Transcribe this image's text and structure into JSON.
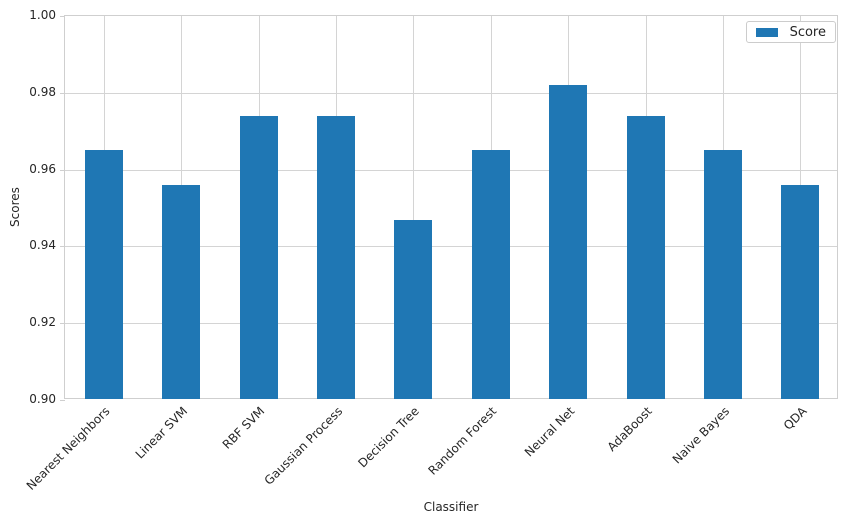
{
  "chart_data": {
    "type": "bar",
    "title": "",
    "categories": [
      "Nearest Neighbors",
      "Linear SVM",
      "RBF SVM",
      "Gaussian Process",
      "Decision Tree",
      "Random Forest",
      "Neural Net",
      "AdaBoost",
      "Naive Bayes",
      "QDA"
    ],
    "series": [
      {
        "name": "Score",
        "values": [
          0.965,
          0.956,
          0.974,
          0.974,
          0.947,
          0.965,
          0.982,
          0.974,
          0.965,
          0.956
        ]
      }
    ],
    "xlabel": "Classifier",
    "ylabel": "Scores",
    "ylim": [
      0.9,
      1.0
    ],
    "yticks": [
      0.9,
      0.92,
      0.94,
      0.96,
      0.98,
      1.0
    ],
    "ytick_labels": [
      "0.90",
      "0.92",
      "0.94",
      "0.96",
      "0.98",
      "1.00"
    ],
    "grid": true,
    "legend": {
      "label": "Score",
      "position": "upper right"
    },
    "colors": {
      "bar": "#1f77b4",
      "grid": "#d4d4d4",
      "spine": "#cfcfcf",
      "text": "#262626",
      "background": "#ffffff"
    }
  }
}
